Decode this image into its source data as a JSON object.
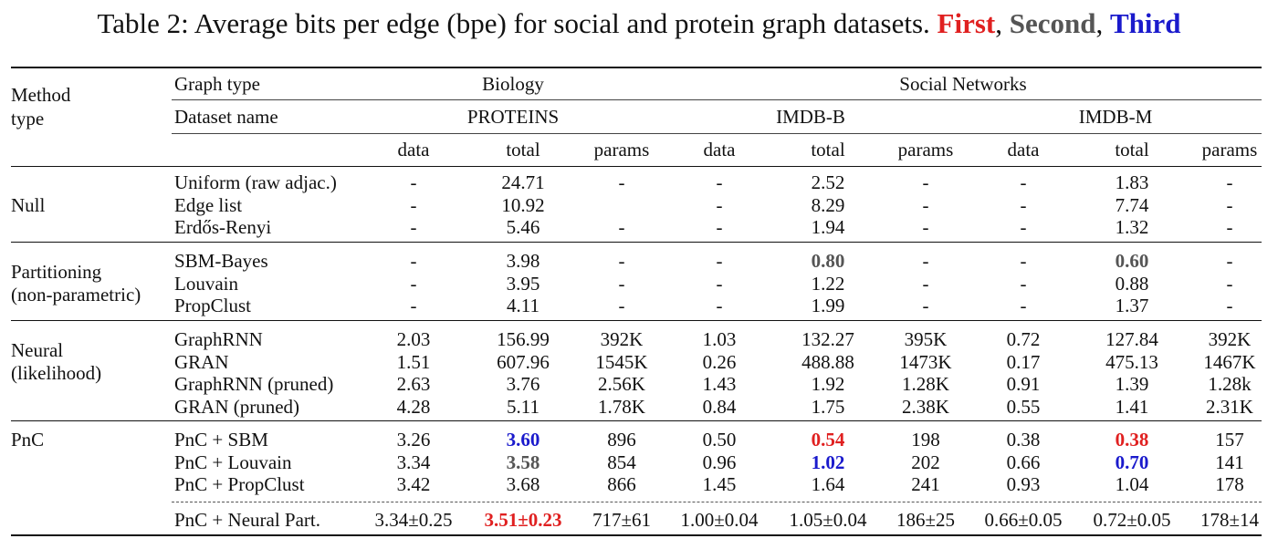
{
  "caption": {
    "prefix": "Table 2: Average bits per edge (bpe) for social and protein graph datasets.",
    "first": "First",
    "sep1": ",",
    "second": "Second",
    "sep2": ",",
    "third": "Third"
  },
  "header": {
    "method_type_l1": "Method",
    "method_type_l2": "type",
    "graph_type": "Graph type",
    "dataset_name": "Dataset name",
    "biology": "Biology",
    "social": "Social Networks",
    "proteins": "PROTEINS",
    "imdbb": "IMDB-B",
    "imdbm": "IMDB-M",
    "subcols": [
      "data",
      "total",
      "params",
      "data",
      "total",
      "params",
      "data",
      "total",
      "params"
    ]
  },
  "groups": [
    {
      "label": [
        "Null"
      ],
      "rows": [
        {
          "name": "Uniform (raw adjac.)",
          "cells": [
            "-",
            "24.71",
            "-",
            "-",
            "2.52",
            "-",
            "-",
            "1.83",
            "-"
          ]
        },
        {
          "name": "Edge list",
          "cells": [
            "-",
            "10.92",
            "",
            "-",
            "8.29",
            "-",
            "-",
            "7.74",
            "-"
          ]
        },
        {
          "name": "Erdős-Renyi",
          "cells": [
            "-",
            "5.46",
            "-",
            "-",
            "1.94",
            "-",
            "-",
            "1.32",
            "-"
          ]
        }
      ]
    },
    {
      "label": [
        "Partitioning",
        "(non-parametric)"
      ],
      "rows": [
        {
          "name": "SBM-Bayes",
          "cells": [
            "-",
            "3.98",
            "-",
            "-",
            "0.80",
            "-",
            "-",
            "0.60",
            "-"
          ]
        },
        {
          "name": "Louvain",
          "cells": [
            "-",
            "3.95",
            "-",
            "-",
            "1.22",
            "-",
            "-",
            "0.88",
            "-"
          ]
        },
        {
          "name": "PropClust",
          "cells": [
            "-",
            "4.11",
            "-",
            "-",
            "1.99",
            "-",
            "-",
            "1.37",
            "-"
          ]
        }
      ]
    },
    {
      "label": [
        "Neural",
        "(likelihood)"
      ],
      "rows": [
        {
          "name": "GraphRNN",
          "cells": [
            "2.03",
            "156.99",
            "392K",
            "1.03",
            "132.27",
            "395K",
            "0.72",
            "127.84",
            "392K"
          ]
        },
        {
          "name": "GRAN",
          "cells": [
            "1.51",
            "607.96",
            "1545K",
            "0.26",
            "488.88",
            "1473K",
            "0.17",
            "475.13",
            "1467K"
          ]
        },
        {
          "name": "GraphRNN (pruned)",
          "cells": [
            "2.63",
            "3.76",
            "2.56K",
            "1.43",
            "1.92",
            "1.28K",
            "0.91",
            "1.39",
            "1.28k"
          ]
        },
        {
          "name": "GRAN (pruned)",
          "cells": [
            "4.28",
            "5.11",
            "1.78K",
            "0.84",
            "1.75",
            "2.38K",
            "0.55",
            "1.41",
            "2.31K"
          ]
        }
      ]
    },
    {
      "label": [
        "PnC"
      ],
      "rows": [
        {
          "name": "PnC + SBM",
          "cells": [
            "3.26",
            "3.60",
            "896",
            "0.50",
            "0.54",
            "198",
            "0.38",
            "0.38",
            "157"
          ]
        },
        {
          "name": "PnC + Louvain",
          "cells": [
            "3.34",
            "3.58",
            "854",
            "0.96",
            "1.02",
            "202",
            "0.66",
            "0.70",
            "141"
          ]
        },
        {
          "name": "PnC + PropClust",
          "cells": [
            "3.42",
            "3.68",
            "866",
            "1.45",
            "1.64",
            "241",
            "0.93",
            "1.04",
            "178"
          ]
        },
        {
          "name": "PnC + Neural Part.",
          "cells": [
            "3.34±0.25",
            "3.51±0.23",
            "717±61",
            "1.00±0.04",
            "1.05±0.04",
            "186±25",
            "0.66±0.05",
            "0.72±0.05",
            "178±14"
          ]
        }
      ]
    }
  ],
  "highlight_colors": {
    "first": "#e02020",
    "second": "#555555",
    "third": "#1a1acc"
  }
}
